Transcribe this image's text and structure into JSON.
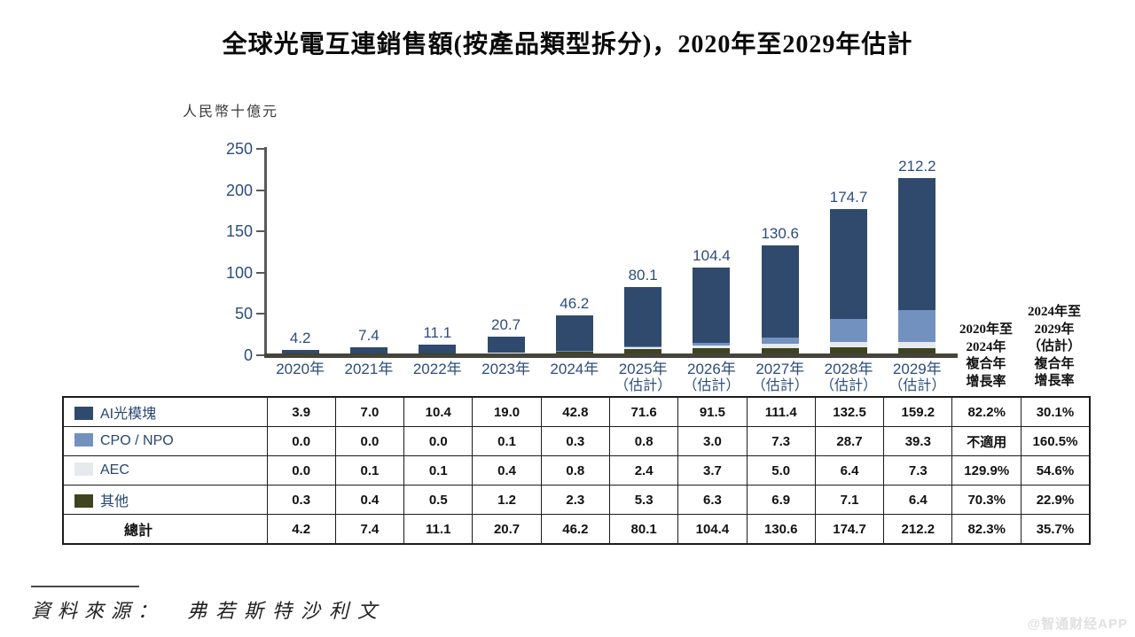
{
  "title": "全球光電互連銷售額(按產品類型拆分)，2020年至2029年估計",
  "unit_label": "人民幣十億元",
  "colors": {
    "ai_module": "#2F4A6C",
    "cpo_npo": "#7291BF",
    "aec": "#E6EAEF",
    "other": "#3F431F",
    "label_navy": "#2C4D7C",
    "axis_gray": "#58595B",
    "baseline_gray": "#45443B"
  },
  "chart_data": {
    "type": "bar",
    "stacked": true,
    "title": "全球光電互連銷售額(按產品類型拆分)，2020年至2029年估計",
    "xlabel": "",
    "ylabel": "人民幣十億元",
    "ylim": [
      0,
      250
    ],
    "yticks": [
      0,
      50,
      100,
      150,
      200,
      250
    ],
    "grid": false,
    "legend_position": "table-rows-left",
    "categories": [
      "2020年",
      "2021年",
      "2022年",
      "2023年",
      "2024年",
      "2025年",
      "2026年",
      "2027年",
      "2028年",
      "2029年"
    ],
    "category_notes": [
      "",
      "",
      "",
      "",
      "",
      "（估計）",
      "（估計）",
      "（估計）",
      "（估計）",
      "（估計）"
    ],
    "series": [
      {
        "name": "AI光模塊",
        "color_key": "ai_module",
        "values": [
          "3.9",
          "7.0",
          "10.4",
          "19.0",
          "42.8",
          "71.6",
          "91.5",
          "111.4",
          "132.5",
          "159.2"
        ]
      },
      {
        "name": "CPO / NPO",
        "color_key": "cpo_npo",
        "values": [
          "0.0",
          "0.0",
          "0.0",
          "0.1",
          "0.3",
          "0.8",
          "3.0",
          "7.3",
          "28.7",
          "39.3"
        ]
      },
      {
        "name": "AEC",
        "color_key": "aec",
        "values": [
          "0.0",
          "0.1",
          "0.1",
          "0.4",
          "0.8",
          "2.4",
          "3.7",
          "5.0",
          "6.4",
          "7.3"
        ]
      },
      {
        "name": "其他",
        "color_key": "other",
        "values": [
          "0.3",
          "0.4",
          "0.5",
          "1.2",
          "2.3",
          "5.3",
          "6.3",
          "6.9",
          "7.1",
          "6.4"
        ]
      }
    ],
    "stack_bottom_to_top": [
      "其他",
      "AEC",
      "CPO / NPO",
      "AI光模塊"
    ],
    "totals": [
      "4.2",
      "7.4",
      "11.1",
      "20.7",
      "46.2",
      "80.1",
      "104.4",
      "130.6",
      "174.7",
      "212.2"
    ]
  },
  "table": {
    "cagr_headers": [
      {
        "lines": [
          "2020年至",
          "2024年",
          "複合年",
          "增長率"
        ]
      },
      {
        "lines": [
          "2024年至",
          "2029年",
          "（估計）",
          "複合年",
          "增長率"
        ]
      }
    ],
    "rows": [
      {
        "label": "AI光模塊",
        "color_key": "ai_module",
        "values": [
          "3.9",
          "7.0",
          "10.4",
          "19.0",
          "42.8",
          "71.6",
          "91.5",
          "111.4",
          "132.5",
          "159.2"
        ],
        "cagr": [
          "82.2%",
          "30.1%"
        ],
        "total": false
      },
      {
        "label": "CPO / NPO",
        "color_key": "cpo_npo",
        "values": [
          "0.0",
          "0.0",
          "0.0",
          "0.1",
          "0.3",
          "0.8",
          "3.0",
          "7.3",
          "28.7",
          "39.3"
        ],
        "cagr": [
          "不適用",
          "160.5%"
        ],
        "total": false
      },
      {
        "label": "AEC",
        "color_key": "aec",
        "values": [
          "0.0",
          "0.1",
          "0.1",
          "0.4",
          "0.8",
          "2.4",
          "3.7",
          "5.0",
          "6.4",
          "7.3"
        ],
        "cagr": [
          "129.9%",
          "54.6%"
        ],
        "total": false
      },
      {
        "label": "其他",
        "color_key": "other",
        "values": [
          "0.3",
          "0.4",
          "0.5",
          "1.2",
          "2.3",
          "5.3",
          "6.3",
          "6.9",
          "7.1",
          "6.4"
        ],
        "cagr": [
          "70.3%",
          "22.9%"
        ],
        "total": false
      },
      {
        "label": "總計",
        "color_key": "",
        "values": [
          "4.2",
          "7.4",
          "11.1",
          "20.7",
          "46.2",
          "80.1",
          "104.4",
          "130.6",
          "174.7",
          "212.2"
        ],
        "cagr": [
          "82.3%",
          "35.7%"
        ],
        "total": true
      }
    ]
  },
  "source": {
    "label": "資料來源：",
    "value": "弗若斯特沙利文"
  },
  "watermark": "@智通财经APP"
}
